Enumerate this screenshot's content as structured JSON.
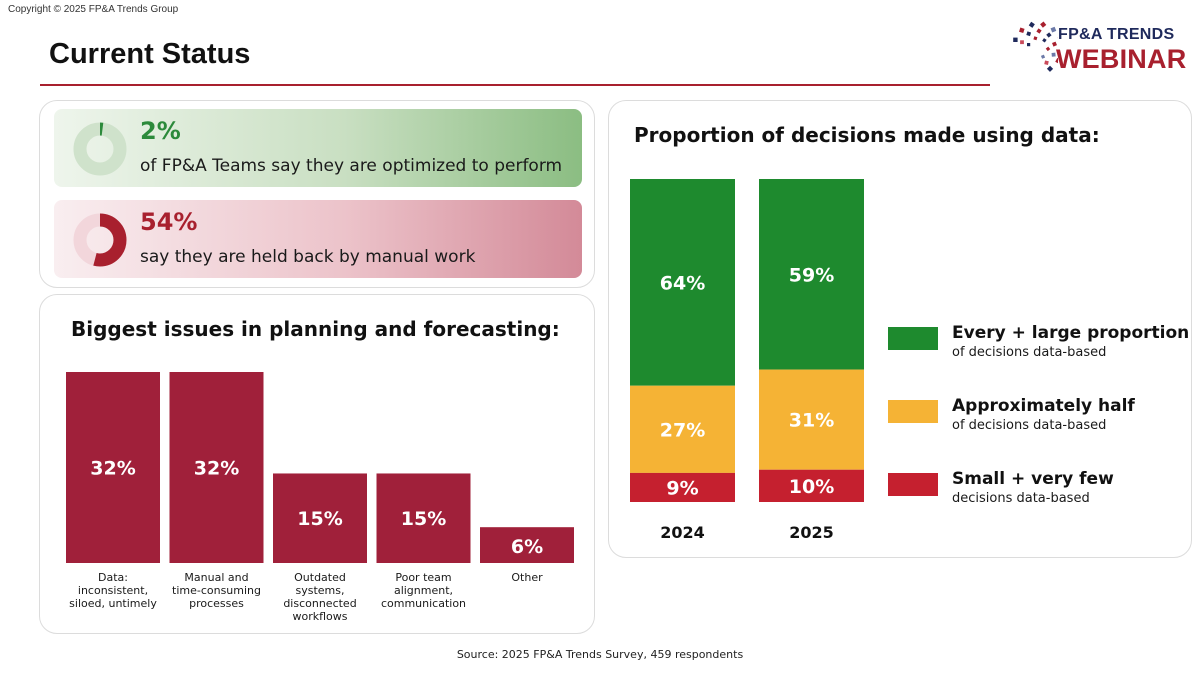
{
  "header": {
    "copyright": "Copyright © 2025 FP&A Trends Group",
    "title": "Current Status",
    "logo_line1": "FP&A TRENDS",
    "logo_line2": "WEBINAR"
  },
  "colors": {
    "brand_red": "#a8202e",
    "green": "#1e8a2e",
    "amber": "#f5b335",
    "red": "#c5202f",
    "navy": "#1f2a5c"
  },
  "stats": [
    {
      "value": "2%",
      "fraction": 0.02,
      "text": "of FP&A Teams say they are optimized to perform",
      "color": "#2c8a3b",
      "track": "#cfe2cb"
    },
    {
      "value": "54%",
      "fraction": 0.54,
      "text": "say they are held back by manual work",
      "color": "#a8202e",
      "track": "#f2d6db"
    }
  ],
  "source": "Source: 2025 FP&A Trends Survey, 459 respondents",
  "chart_data": [
    {
      "type": "bar",
      "title": "Biggest issues in planning and forecasting:",
      "categories": [
        "Data: inconsistent, siloed, untimely",
        "Manual and time-consuming processes",
        "Outdated systems, disconnected workflows",
        "Poor team alignment, communication",
        "Other"
      ],
      "category_lines": [
        [
          "Data:",
          "inconsistent,",
          "siloed, untimely"
        ],
        [
          "Manual and",
          "time-consuming",
          "processes"
        ],
        [
          "Outdated",
          "systems,",
          "disconnected",
          "workflows"
        ],
        [
          "Poor team",
          "alignment,",
          "communication"
        ],
        [
          "Other"
        ]
      ],
      "values": [
        32,
        32,
        15,
        15,
        6
      ],
      "labels": [
        "32%",
        "32%",
        "15%",
        "15%",
        "6%"
      ],
      "color": "#a0203a",
      "ylim": [
        0,
        32
      ]
    },
    {
      "type": "bar",
      "stacked": true,
      "title": "Proportion of decisions made using data:",
      "categories": [
        "2024",
        "2025"
      ],
      "series": [
        {
          "name": "Every + large proportion",
          "sub": "of decisions data-based",
          "values": [
            64,
            59
          ],
          "labels": [
            "64%",
            "59%"
          ],
          "color": "#1e8a2e"
        },
        {
          "name": "Approximately half",
          "sub": "of decisions data-based",
          "values": [
            27,
            31
          ],
          "labels": [
            "27%",
            "31%"
          ],
          "color": "#f5b335"
        },
        {
          "name": "Small + very few",
          "sub": "decisions data-based",
          "values": [
            9,
            10
          ],
          "labels": [
            "9%",
            "10%"
          ],
          "color": "#c5202f"
        }
      ],
      "ylim": [
        0,
        100
      ],
      "legend": "right"
    }
  ]
}
